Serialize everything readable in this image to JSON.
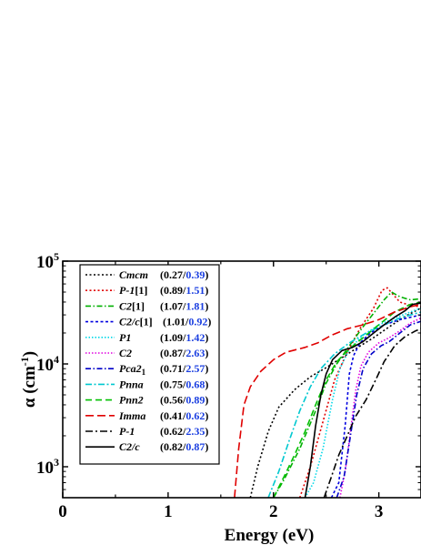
{
  "chart_data": {
    "type": "line",
    "xlabel": "Energy (eV)",
    "ylabel": "α (cm⁻¹)",
    "ylabel_main": "α (cm",
    "ylabel_sup": "-1",
    "ylabel_tail": ")",
    "xlim": [
      0,
      3.4
    ],
    "ylim": [
      500,
      100000
    ],
    "y_scale": "log",
    "x_ticks": [
      "0",
      "1",
      "2",
      "3"
    ],
    "y_ticks": [
      {
        "base": "10",
        "exp": "3"
      },
      {
        "base": "10",
        "exp": "4"
      },
      {
        "base": "10",
        "exp": "5"
      }
    ],
    "legend_position": "top-left",
    "series": [
      {
        "name": "Cmcm",
        "suffix": "",
        "val1": "0.27",
        "val2": "0.39",
        "color": "#000000",
        "dash": "2,2.5",
        "points": [
          [
            1.78,
            500
          ],
          [
            1.85,
            1000
          ],
          [
            1.95,
            2200
          ],
          [
            2.05,
            3800
          ],
          [
            2.2,
            5600
          ],
          [
            2.35,
            7500
          ],
          [
            2.5,
            9200
          ],
          [
            2.65,
            11500
          ],
          [
            2.8,
            14500
          ],
          [
            2.95,
            18000
          ],
          [
            3.1,
            23000
          ],
          [
            3.25,
            29000
          ],
          [
            3.4,
            35000
          ]
        ]
      },
      {
        "name": "P-1",
        "suffix": "[1]",
        "val1": "0.89",
        "val2": "1.51",
        "color": "#e00000",
        "dash": "2,2.5",
        "points": [
          [
            2.25,
            500
          ],
          [
            2.35,
            1000
          ],
          [
            2.48,
            3000
          ],
          [
            2.58,
            7000
          ],
          [
            2.7,
            13000
          ],
          [
            2.82,
            22000
          ],
          [
            2.95,
            35000
          ],
          [
            3.03,
            52000
          ],
          [
            3.08,
            55000
          ],
          [
            3.13,
            48000
          ],
          [
            3.2,
            40000
          ],
          [
            3.3,
            37000
          ],
          [
            3.4,
            36000
          ]
        ]
      },
      {
        "name": "C2",
        "suffix": "[1]",
        "val1": "1.07",
        "val2": "1.81",
        "color": "#00b000",
        "dash": "6,2.5,1.5,2.5",
        "points": [
          [
            2.0,
            500
          ],
          [
            2.1,
            750
          ],
          [
            2.25,
            1500
          ],
          [
            2.4,
            3500
          ],
          [
            2.5,
            6500
          ],
          [
            2.6,
            10000
          ],
          [
            2.72,
            15000
          ],
          [
            2.85,
            23000
          ],
          [
            2.97,
            33000
          ],
          [
            3.05,
            42000
          ],
          [
            3.12,
            50000
          ],
          [
            3.2,
            45000
          ],
          [
            3.3,
            42000
          ],
          [
            3.4,
            43000
          ]
        ]
      },
      {
        "name": "C2/c",
        "suffix": "[1]",
        "val1": "1.01",
        "val2": "0.92",
        "color": "#0000e0",
        "dash": "3,2.5",
        "points": [
          [
            2.55,
            500
          ],
          [
            2.62,
            700
          ],
          [
            2.68,
            2500
          ],
          [
            2.72,
            8000
          ],
          [
            2.76,
            12000
          ],
          [
            2.82,
            16000
          ],
          [
            2.92,
            20000
          ],
          [
            3.05,
            24000
          ],
          [
            3.2,
            27000
          ],
          [
            3.4,
            30000
          ]
        ]
      },
      {
        "name": "P1",
        "suffix": "",
        "val1": "1.09",
        "val2": "1.42",
        "color": "#00d8e8",
        "dash": "1.5,2",
        "points": [
          [
            2.3,
            500
          ],
          [
            2.38,
            700
          ],
          [
            2.47,
            1500
          ],
          [
            2.56,
            4500
          ],
          [
            2.63,
            9000
          ],
          [
            2.72,
            14000
          ],
          [
            2.85,
            19000
          ],
          [
            3.0,
            24000
          ],
          [
            3.15,
            28000
          ],
          [
            3.3,
            32000
          ],
          [
            3.4,
            35000
          ]
        ]
      },
      {
        "name": "C2",
        "suffix": "",
        "val1": "0.87",
        "val2": "2.63",
        "color": "#e000e0",
        "dash": "1.5,2",
        "points": [
          [
            2.63,
            500
          ],
          [
            2.68,
            900
          ],
          [
            2.73,
            2200
          ],
          [
            2.78,
            5500
          ],
          [
            2.83,
            9500
          ],
          [
            2.9,
            13000
          ],
          [
            3.0,
            16000
          ],
          [
            3.1,
            18000
          ],
          [
            3.2,
            21000
          ],
          [
            3.3,
            25000
          ],
          [
            3.4,
            28000
          ]
        ]
      },
      {
        "name": "Pca2",
        "suffix": "1",
        "val1": "0.71",
        "val2": "2.57",
        "color": "#0000c8",
        "dash": "6,2.5,1.5,2.5",
        "points": [
          [
            2.6,
            500
          ],
          [
            2.67,
            800
          ],
          [
            2.73,
            2000
          ],
          [
            2.79,
            5000
          ],
          [
            2.85,
            9000
          ],
          [
            2.93,
            12500
          ],
          [
            3.02,
            15000
          ],
          [
            3.1,
            16500
          ],
          [
            3.2,
            20000
          ],
          [
            3.3,
            24000
          ],
          [
            3.4,
            26000
          ]
        ]
      },
      {
        "name": "Pnna",
        "suffix": "",
        "val1": "0.75",
        "val2": "0.68",
        "color": "#00c8d0",
        "dash": "7,2.5,2,2.5",
        "points": [
          [
            1.95,
            500
          ],
          [
            2.05,
            900
          ],
          [
            2.15,
            1800
          ],
          [
            2.25,
            3500
          ],
          [
            2.35,
            6000
          ],
          [
            2.45,
            9000
          ],
          [
            2.58,
            12500
          ],
          [
            2.72,
            16000
          ],
          [
            2.88,
            20000
          ],
          [
            3.05,
            24000
          ],
          [
            3.2,
            28000
          ],
          [
            3.4,
            32000
          ]
        ]
      },
      {
        "name": "Pnn2",
        "suffix": "",
        "val1": "0.56",
        "val2": "0.89",
        "color": "#00c000",
        "dash": "7,4",
        "points": [
          [
            2.0,
            500
          ],
          [
            2.1,
            800
          ],
          [
            2.2,
            1300
          ],
          [
            2.3,
            2200
          ],
          [
            2.4,
            4000
          ],
          [
            2.5,
            7000
          ],
          [
            2.6,
            10500
          ],
          [
            2.72,
            14000
          ],
          [
            2.85,
            18000
          ],
          [
            3.0,
            24000
          ],
          [
            3.15,
            32000
          ],
          [
            3.3,
            38000
          ],
          [
            3.4,
            40000
          ]
        ]
      },
      {
        "name": "Imma",
        "suffix": "",
        "val1": "0.41",
        "val2": "0.62",
        "color": "#e00000",
        "dash": "9,4",
        "points": [
          [
            1.63,
            500
          ],
          [
            1.67,
            1500
          ],
          [
            1.72,
            4000
          ],
          [
            1.78,
            6000
          ],
          [
            1.88,
            8500
          ],
          [
            2.0,
            11000
          ],
          [
            2.12,
            13000
          ],
          [
            2.3,
            14500
          ],
          [
            2.42,
            16000
          ],
          [
            2.55,
            19000
          ],
          [
            2.7,
            22000
          ],
          [
            2.85,
            24000
          ],
          [
            3.0,
            27000
          ],
          [
            3.15,
            32000
          ],
          [
            3.3,
            36000
          ],
          [
            3.4,
            38000
          ]
        ]
      },
      {
        "name": "P-1",
        "suffix": "",
        "val1": "0.62",
        "val2": "2.35",
        "color": "#000000",
        "dash": "8,3,2,3",
        "points": [
          [
            2.48,
            500
          ],
          [
            2.55,
            800
          ],
          [
            2.62,
            1300
          ],
          [
            2.7,
            2000
          ],
          [
            2.78,
            3100
          ],
          [
            2.88,
            4500
          ],
          [
            2.97,
            7000
          ],
          [
            3.05,
            10500
          ],
          [
            3.15,
            15000
          ],
          [
            3.25,
            18500
          ],
          [
            3.35,
            21000
          ],
          [
            3.4,
            22000
          ]
        ]
      },
      {
        "name": "C2/c",
        "suffix": "",
        "val1": "0.82",
        "val2": "0.87",
        "color": "#000000",
        "dash": "",
        "points": [
          [
            2.3,
            500
          ],
          [
            2.35,
            1000
          ],
          [
            2.4,
            2500
          ],
          [
            2.45,
            5000
          ],
          [
            2.5,
            8000
          ],
          [
            2.56,
            11000
          ],
          [
            2.65,
            13500
          ],
          [
            2.75,
            14500
          ],
          [
            2.85,
            16500
          ],
          [
            2.95,
            20000
          ],
          [
            3.05,
            24000
          ],
          [
            3.15,
            28500
          ],
          [
            3.25,
            33000
          ],
          [
            3.32,
            38000
          ],
          [
            3.4,
            39000
          ]
        ]
      }
    ]
  }
}
